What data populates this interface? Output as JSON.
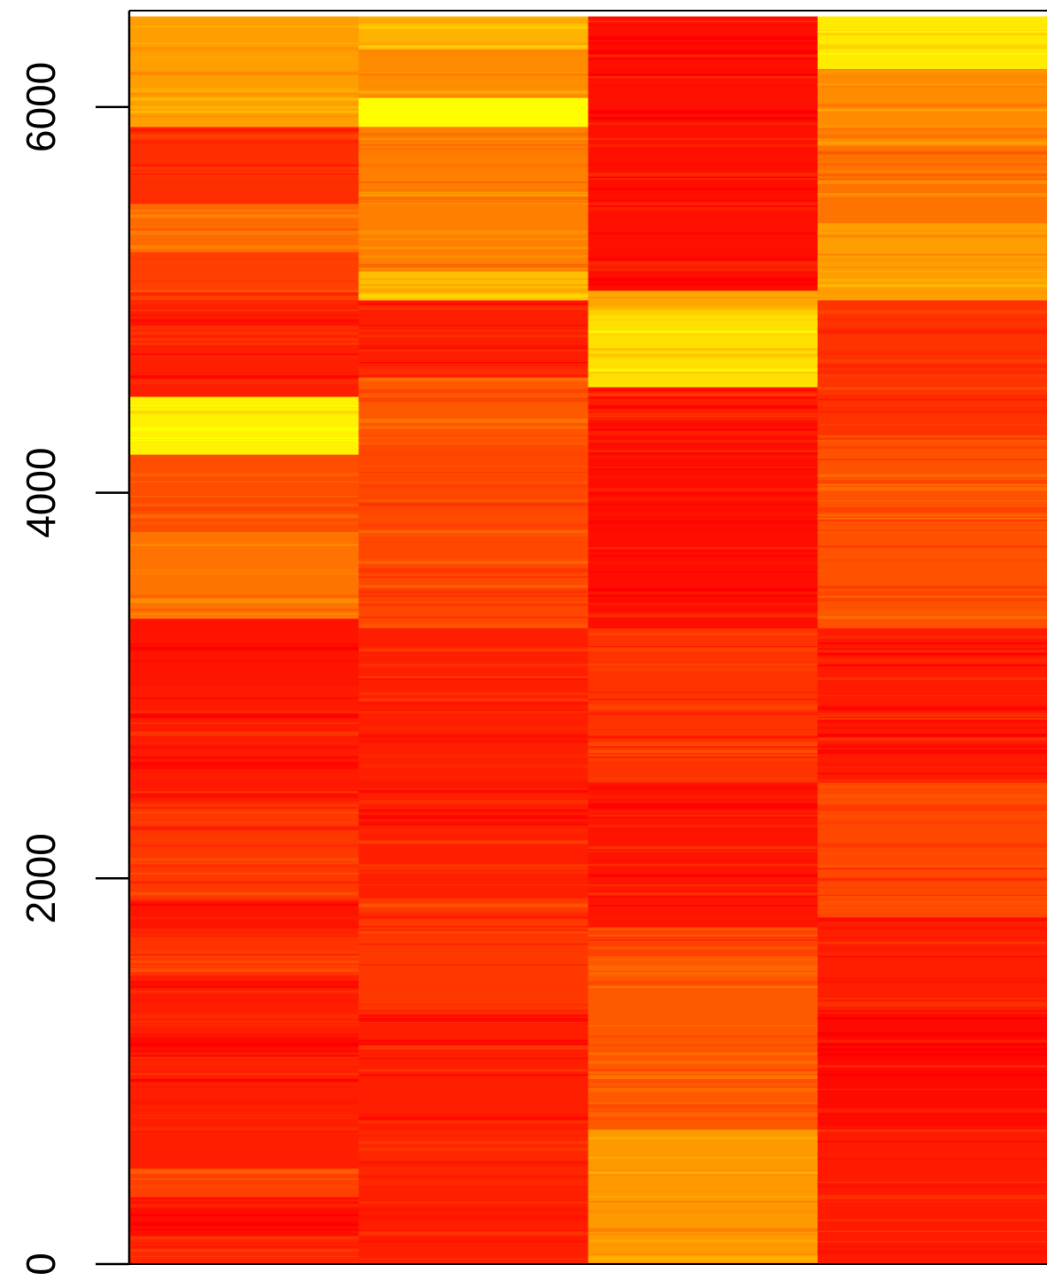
{
  "chart_data": {
    "type": "heatmap",
    "title": "",
    "xlabel": "",
    "ylabel": "",
    "ylim": [
      0,
      6500
    ],
    "y_ticks": [
      {
        "value": 0,
        "label": "0"
      },
      {
        "value": 2000,
        "label": "2000"
      },
      {
        "value": 4000,
        "label": "4000"
      },
      {
        "value": 6000,
        "label": "6000"
      }
    ],
    "columns": 4,
    "colormap": "heat.colors (red → orange → yellow)",
    "palette": {
      "0.00": "#ff0000",
      "0.25": "#ff4000",
      "0.50": "#ff8000",
      "0.75": "#ffbf00",
      "1.00": "#ffff00"
    },
    "bands": [
      [
        {
          "from": 0,
          "to": 150,
          "level": 0.15
        },
        {
          "from": 150,
          "to": 350,
          "level": 0.05
        },
        {
          "from": 350,
          "to": 500,
          "level": 0.25
        },
        {
          "from": 500,
          "to": 1100,
          "level": 0.12
        },
        {
          "from": 1100,
          "to": 1180,
          "level": 0.03
        },
        {
          "from": 1180,
          "to": 1500,
          "level": 0.12
        },
        {
          "from": 1500,
          "to": 1700,
          "level": 0.2
        },
        {
          "from": 1700,
          "to": 1900,
          "level": 0.08
        },
        {
          "from": 1900,
          "to": 2400,
          "level": 0.22
        },
        {
          "from": 2400,
          "to": 3000,
          "level": 0.1
        },
        {
          "from": 3000,
          "to": 3350,
          "level": 0.08
        },
        {
          "from": 3350,
          "to": 3800,
          "level": 0.45
        },
        {
          "from": 3800,
          "to": 4200,
          "level": 0.3
        },
        {
          "from": 4200,
          "to": 4500,
          "level": 0.95
        },
        {
          "from": 4500,
          "to": 5000,
          "level": 0.12
        },
        {
          "from": 5000,
          "to": 5250,
          "level": 0.25
        },
        {
          "from": 5250,
          "to": 5500,
          "level": 0.42
        },
        {
          "from": 5500,
          "to": 5900,
          "level": 0.18
        },
        {
          "from": 5900,
          "to": 6470,
          "level": 0.62
        }
      ],
      [
        {
          "from": 0,
          "to": 400,
          "level": 0.12
        },
        {
          "from": 400,
          "to": 700,
          "level": 0.15
        },
        {
          "from": 700,
          "to": 1300,
          "level": 0.12
        },
        {
          "from": 1300,
          "to": 1900,
          "level": 0.22
        },
        {
          "from": 1900,
          "to": 3300,
          "level": 0.12
        },
        {
          "from": 3300,
          "to": 4250,
          "level": 0.28
        },
        {
          "from": 4250,
          "to": 4600,
          "level": 0.35
        },
        {
          "from": 4600,
          "to": 5000,
          "level": 0.12
        },
        {
          "from": 5000,
          "to": 5150,
          "level": 0.75
        },
        {
          "from": 5150,
          "to": 5900,
          "level": 0.5
        },
        {
          "from": 5900,
          "to": 6050,
          "level": 1.0
        },
        {
          "from": 6050,
          "to": 6300,
          "level": 0.55
        },
        {
          "from": 6300,
          "to": 6470,
          "level": 0.7
        }
      ],
      [
        {
          "from": 0,
          "to": 700,
          "level": 0.6
        },
        {
          "from": 700,
          "to": 1600,
          "level": 0.35
        },
        {
          "from": 1600,
          "to": 1750,
          "level": 0.25
        },
        {
          "from": 1750,
          "to": 2500,
          "level": 0.08
        },
        {
          "from": 2500,
          "to": 3300,
          "level": 0.2
        },
        {
          "from": 3300,
          "to": 4300,
          "level": 0.05
        },
        {
          "from": 4300,
          "to": 4550,
          "level": 0.12
        },
        {
          "from": 4550,
          "to": 4950,
          "level": 0.88
        },
        {
          "from": 4950,
          "to": 5050,
          "level": 0.65
        },
        {
          "from": 5050,
          "to": 6470,
          "level": 0.06
        }
      ],
      [
        {
          "from": 0,
          "to": 700,
          "level": 0.1
        },
        {
          "from": 700,
          "to": 1300,
          "level": 0.04
        },
        {
          "from": 1300,
          "to": 1800,
          "level": 0.12
        },
        {
          "from": 1800,
          "to": 2500,
          "level": 0.28
        },
        {
          "from": 2500,
          "to": 3300,
          "level": 0.1
        },
        {
          "from": 3300,
          "to": 4300,
          "level": 0.32
        },
        {
          "from": 4300,
          "to": 5000,
          "level": 0.2
        },
        {
          "from": 5000,
          "to": 5400,
          "level": 0.62
        },
        {
          "from": 5400,
          "to": 5800,
          "level": 0.45
        },
        {
          "from": 5800,
          "to": 6200,
          "level": 0.55
        },
        {
          "from": 6200,
          "to": 6470,
          "level": 0.92
        }
      ]
    ]
  }
}
